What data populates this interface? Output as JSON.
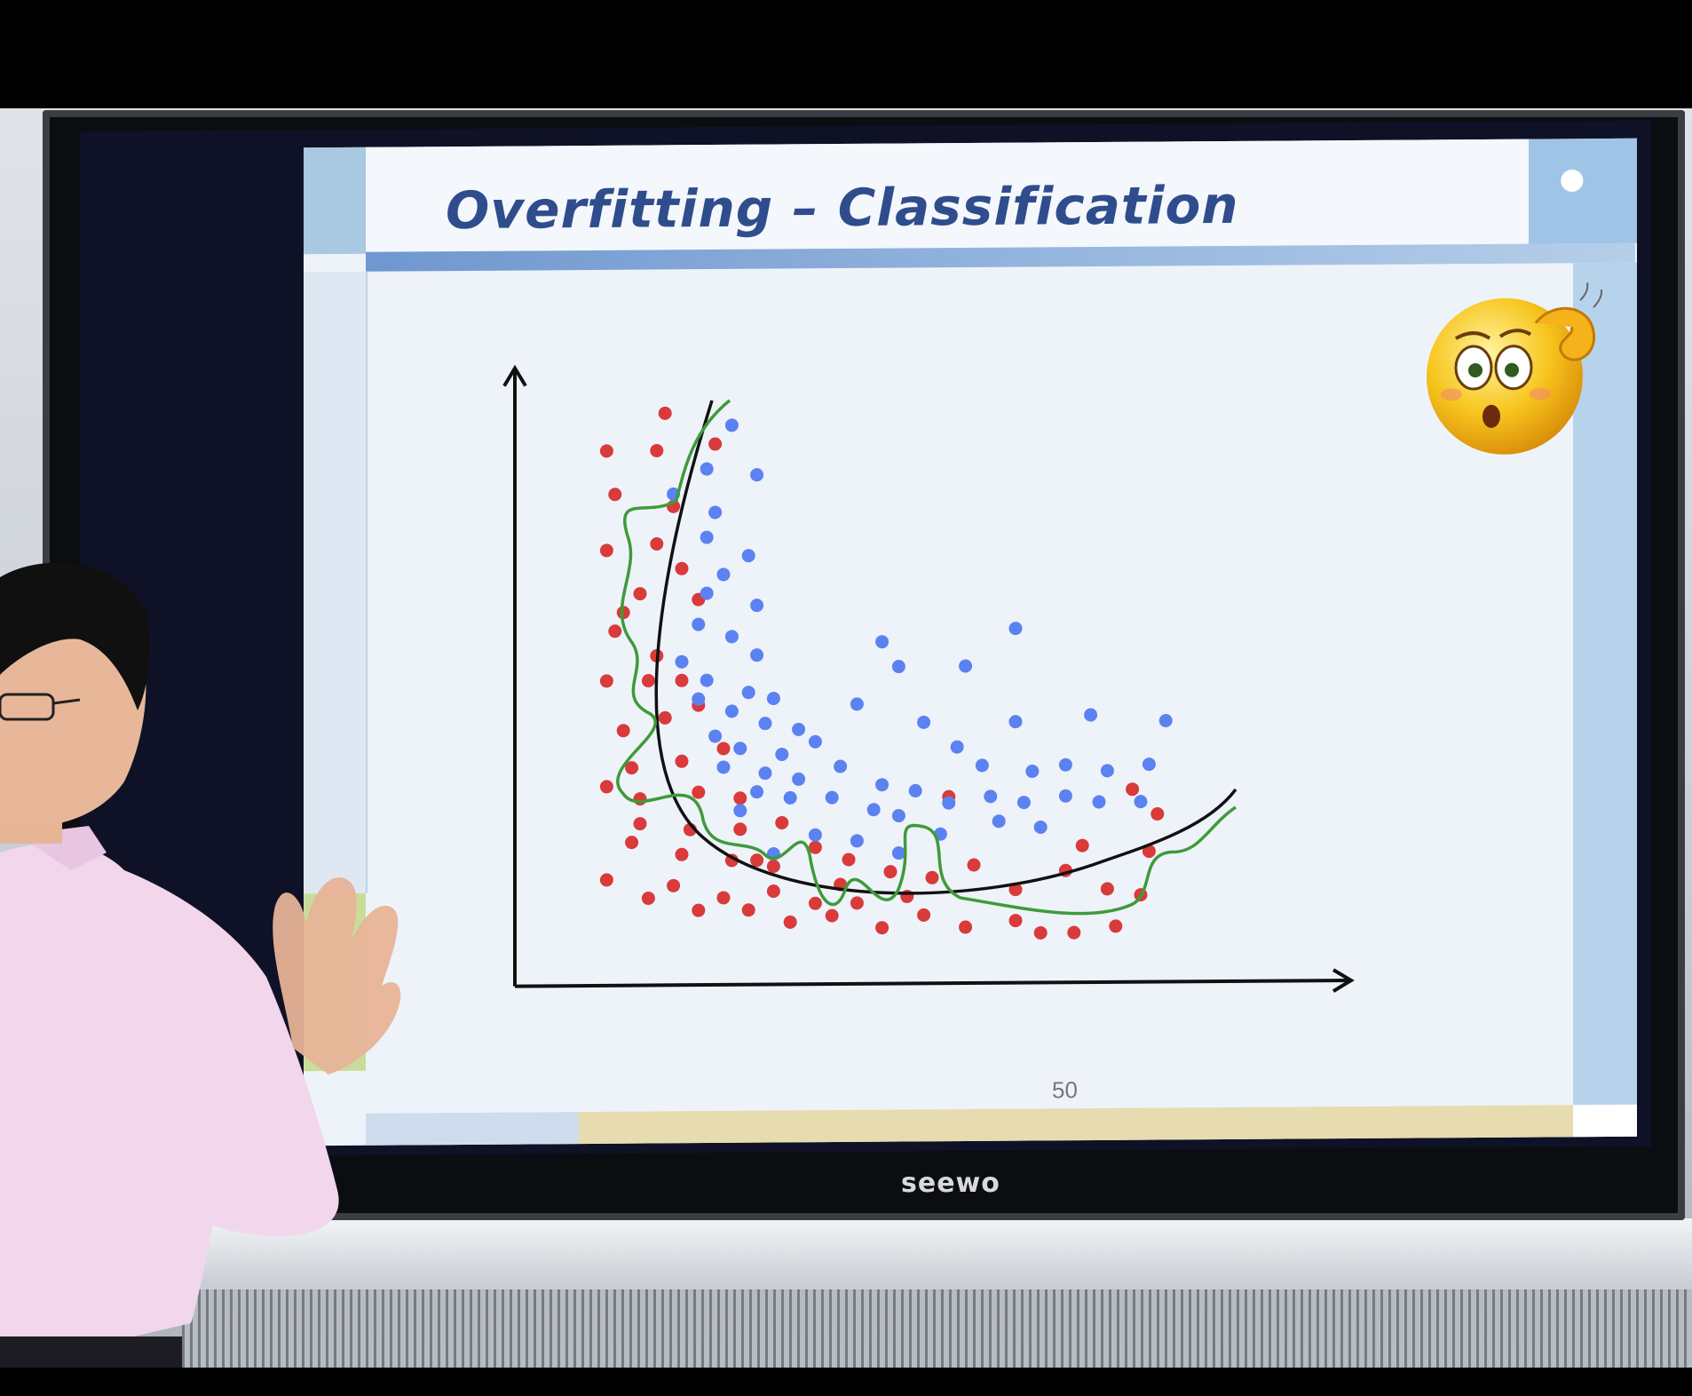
{
  "slide": {
    "title": "Overfitting – Classification",
    "page_number": "50"
  },
  "screen_brand": "seewo",
  "chart_data": {
    "type": "scatter",
    "axes_labels_shown": false,
    "series": [
      {
        "name": "",
        "color": "#d93a3a",
        "points": [
          [
            1.8,
            9.2
          ],
          [
            1.1,
            8.6
          ],
          [
            1.7,
            8.6
          ],
          [
            2.4,
            8.7
          ],
          [
            1.2,
            7.9
          ],
          [
            1.9,
            7.7
          ],
          [
            1.7,
            7.1
          ],
          [
            1.1,
            7.0
          ],
          [
            1.5,
            6.3
          ],
          [
            2.0,
            6.7
          ],
          [
            1.3,
            6.0
          ],
          [
            2.2,
            6.2
          ],
          [
            1.2,
            5.7
          ],
          [
            1.7,
            5.3
          ],
          [
            1.1,
            4.9
          ],
          [
            1.6,
            4.9
          ],
          [
            2.0,
            4.9
          ],
          [
            1.3,
            4.1
          ],
          [
            1.8,
            4.3
          ],
          [
            2.2,
            4.5
          ],
          [
            1.4,
            3.5
          ],
          [
            2.0,
            3.6
          ],
          [
            2.5,
            3.8
          ],
          [
            1.1,
            3.2
          ],
          [
            1.5,
            3.0
          ],
          [
            2.2,
            3.1
          ],
          [
            2.7,
            3.0
          ],
          [
            1.5,
            2.6
          ],
          [
            2.1,
            2.5
          ],
          [
            2.7,
            2.5
          ],
          [
            3.2,
            2.6
          ],
          [
            1.4,
            2.3
          ],
          [
            2.0,
            2.1
          ],
          [
            2.6,
            2.0
          ],
          [
            3.1,
            1.9
          ],
          [
            1.9,
            1.6
          ],
          [
            2.5,
            1.4
          ],
          [
            3.1,
            1.5
          ],
          [
            1.1,
            1.7
          ],
          [
            1.6,
            1.4
          ],
          [
            2.2,
            1.2
          ],
          [
            2.8,
            1.2
          ],
          [
            3.3,
            1.0
          ],
          [
            3.6,
            1.3
          ],
          [
            4.0,
            2.0
          ],
          [
            4.5,
            1.8
          ],
          [
            5.0,
            1.7
          ],
          [
            5.5,
            1.9
          ],
          [
            6.0,
            1.5
          ],
          [
            6.6,
            1.8
          ],
          [
            7.1,
            1.5
          ],
          [
            3.8,
            1.1
          ],
          [
            4.4,
            0.9
          ],
          [
            4.9,
            1.1
          ],
          [
            5.4,
            0.9
          ],
          [
            6.0,
            1.0
          ],
          [
            6.7,
            0.8
          ],
          [
            7.2,
            0.9
          ],
          [
            7.5,
            1.4
          ],
          [
            7.6,
            2.1
          ],
          [
            7.7,
            2.7
          ],
          [
            6.8,
            2.2
          ],
          [
            7.4,
            3.1
          ],
          [
            6.3,
            0.8
          ],
          [
            5.2,
            3.0
          ],
          [
            4.7,
            1.4
          ],
          [
            4.1,
            1.3
          ],
          [
            3.6,
            2.2
          ],
          [
            3.9,
            1.6
          ],
          [
            2.9,
            2.0
          ]
        ]
      },
      {
        "name": "",
        "color": "#5b82f0",
        "points": [
          [
            2.6,
            9.0
          ],
          [
            2.3,
            8.3
          ],
          [
            2.9,
            8.2
          ],
          [
            1.9,
            7.9
          ],
          [
            2.4,
            7.6
          ],
          [
            2.3,
            7.2
          ],
          [
            2.8,
            6.9
          ],
          [
            2.5,
            6.6
          ],
          [
            2.3,
            6.3
          ],
          [
            2.9,
            6.1
          ],
          [
            2.2,
            5.8
          ],
          [
            2.6,
            5.6
          ],
          [
            2.9,
            5.3
          ],
          [
            2.0,
            5.2
          ],
          [
            2.3,
            4.9
          ],
          [
            2.8,
            4.7
          ],
          [
            3.1,
            4.6
          ],
          [
            2.6,
            4.4
          ],
          [
            3.0,
            4.2
          ],
          [
            3.4,
            4.1
          ],
          [
            2.4,
            4.0
          ],
          [
            2.7,
            3.8
          ],
          [
            3.2,
            3.7
          ],
          [
            3.6,
            3.9
          ],
          [
            2.5,
            3.5
          ],
          [
            3.0,
            3.4
          ],
          [
            3.4,
            3.3
          ],
          [
            3.9,
            3.5
          ],
          [
            4.4,
            3.2
          ],
          [
            2.9,
            3.1
          ],
          [
            3.3,
            3.0
          ],
          [
            3.8,
            3.0
          ],
          [
            4.3,
            2.8
          ],
          [
            4.8,
            3.1
          ],
          [
            5.2,
            2.9
          ],
          [
            5.7,
            3.0
          ],
          [
            6.1,
            2.9
          ],
          [
            6.6,
            3.0
          ],
          [
            7.0,
            2.9
          ],
          [
            5.6,
            3.5
          ],
          [
            6.2,
            3.4
          ],
          [
            6.6,
            3.5
          ],
          [
            7.1,
            3.4
          ],
          [
            7.6,
            3.5
          ],
          [
            7.8,
            4.2
          ],
          [
            6.9,
            4.3
          ],
          [
            6.0,
            4.2
          ],
          [
            5.3,
            3.8
          ],
          [
            4.9,
            4.2
          ],
          [
            4.1,
            4.5
          ],
          [
            4.6,
            5.1
          ],
          [
            5.4,
            5.1
          ],
          [
            6.0,
            5.7
          ],
          [
            4.4,
            5.5
          ],
          [
            3.6,
            2.4
          ],
          [
            4.1,
            2.3
          ],
          [
            4.6,
            2.7
          ],
          [
            5.1,
            2.4
          ],
          [
            5.8,
            2.6
          ],
          [
            6.3,
            2.5
          ],
          [
            7.5,
            2.9
          ],
          [
            3.1,
            2.1
          ],
          [
            2.7,
            2.8
          ],
          [
            2.2,
            4.6
          ],
          [
            4.6,
            2.1
          ]
        ]
      }
    ],
    "curves": [
      {
        "name": "",
        "color": "#111111",
        "style": "smooth"
      },
      {
        "name": "",
        "color": "#3f9a3a",
        "style": "wiggly"
      }
    ],
    "xlim": [
      0,
      10
    ],
    "ylim": [
      0,
      10
    ]
  },
  "colors": {
    "slide_bg": "#eef3fa",
    "title": "#2f4d8c",
    "red_points": "#d93a3a",
    "blue_points": "#5b82f0",
    "smooth_boundary": "#111111",
    "overfit_boundary": "#3f9a3a"
  },
  "icons": [
    "confused-emoji-icon"
  ]
}
